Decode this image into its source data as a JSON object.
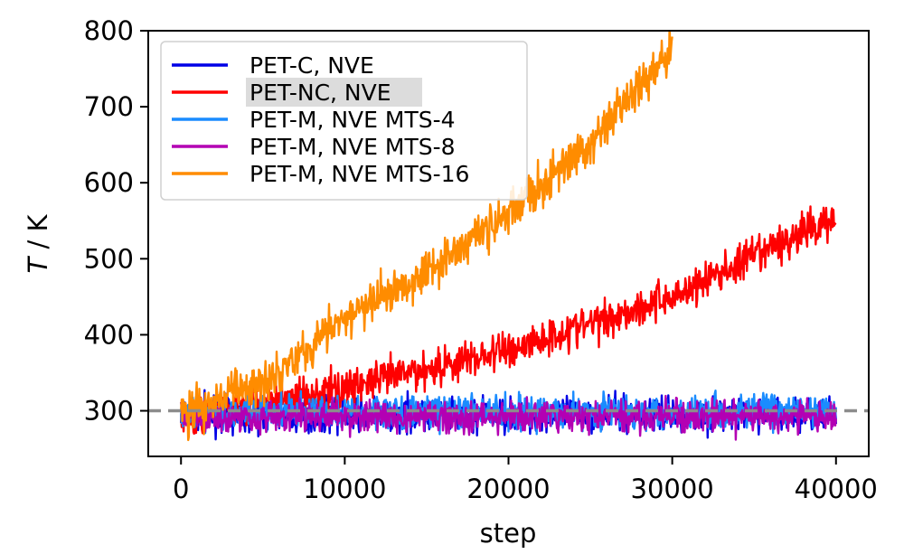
{
  "chart_data": {
    "type": "line",
    "title": "",
    "xlabel": "step",
    "ylabel_symbol": "T",
    "ylabel_unit": " / K",
    "xlim": [
      -2000,
      42000
    ],
    "ylim": [
      240,
      800
    ],
    "x_ticks": [
      0,
      10000,
      20000,
      30000,
      40000
    ],
    "y_ticks": [
      300,
      400,
      500,
      600,
      700,
      800
    ],
    "reference_line": {
      "y": 300,
      "style": "dashed",
      "color": "#8c8c8c"
    },
    "legend_position": "top-left",
    "grid": false,
    "series": [
      {
        "name": "PET-C, NVE",
        "color": "#0000e6",
        "trend": [
          [
            0,
            295
          ],
          [
            40000,
            295
          ]
        ],
        "noise": 26,
        "x_end": 40000
      },
      {
        "name": "PET-NC, NVE",
        "color": "#ff0000",
        "trend": [
          [
            0,
            290
          ],
          [
            10000,
            330
          ],
          [
            20000,
            380
          ],
          [
            30000,
            450
          ],
          [
            40000,
            555
          ]
        ],
        "noise": 30,
        "x_end": 40000
      },
      {
        "name": "PET-M, NVE MTS-4",
        "color": "#1a8cff",
        "trend": [
          [
            0,
            298
          ],
          [
            40000,
            300
          ]
        ],
        "noise": 26,
        "x_end": 40000
      },
      {
        "name": "PET-M, NVE MTS-8",
        "color": "#b300b3",
        "trend": [
          [
            0,
            292
          ],
          [
            40000,
            292
          ]
        ],
        "noise": 24,
        "x_end": 40000
      },
      {
        "name": "PET-M, NVE MTS-16",
        "color": "#ff8c00",
        "trend": [
          [
            0,
            295
          ],
          [
            5000,
            340
          ],
          [
            10000,
            420
          ],
          [
            15000,
            485
          ],
          [
            20000,
            560
          ],
          [
            25000,
            650
          ],
          [
            30000,
            780
          ]
        ],
        "noise": 34,
        "x_end": 30000
      }
    ]
  }
}
